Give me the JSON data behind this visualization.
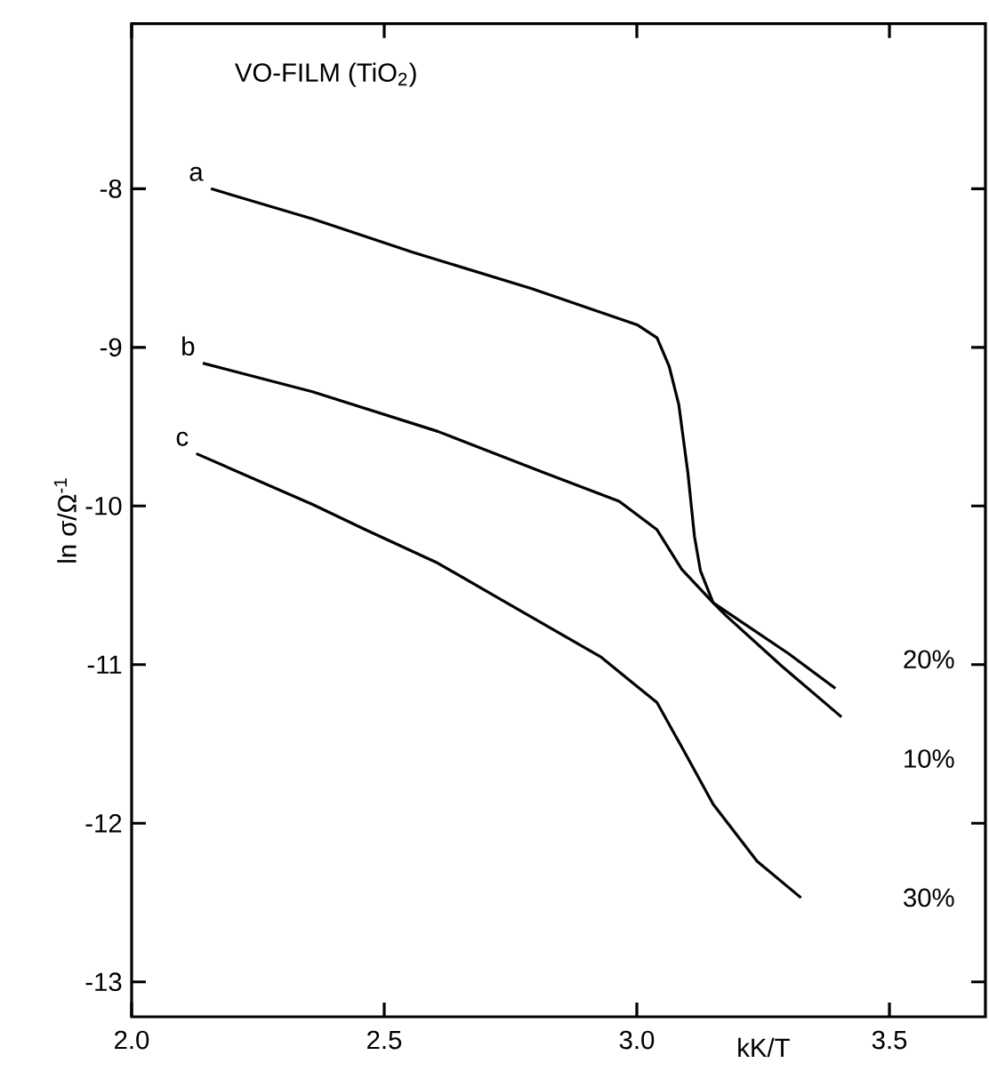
{
  "chart_data": {
    "type": "line",
    "title": "VO-FILM (TiO$_{2}$)",
    "xlabel": "kK/T",
    "ylabel": "ln σ/Ω$^{-1}$",
    "xlim": [
      2.0,
      3.69
    ],
    "ylim": [
      -13.22,
      -6.96
    ],
    "xticks": [
      {
        "value": 2.0,
        "label": "2.0"
      },
      {
        "value": 2.5,
        "label": "2.5"
      },
      {
        "value": 3.0,
        "label": "3.0"
      },
      {
        "value": 3.5,
        "label": "3.5"
      }
    ],
    "yticks": [
      -13,
      -12,
      -11,
      -10,
      -9,
      -8
    ],
    "grid": false,
    "legend": "left",
    "marker": "none",
    "line_style": "solid",
    "series": [
      {
        "name": "a",
        "color": "#000000",
        "x": [
          2.157,
          2.358,
          2.556,
          2.792,
          3.002,
          3.04,
          3.064,
          3.083,
          3.101,
          3.114,
          3.126,
          3.151,
          3.176,
          3.287,
          3.405
        ],
        "values": [
          -8.0,
          -8.19,
          -8.4,
          -8.63,
          -8.86,
          -8.94,
          -9.12,
          -9.36,
          -9.79,
          -10.19,
          -10.41,
          -10.61,
          -10.69,
          -11.01,
          -11.33
        ]
      },
      {
        "name": "b",
        "color": "#000000",
        "x": [
          2.141,
          2.358,
          2.606,
          2.816,
          2.965,
          3.04,
          3.089,
          3.151,
          3.188,
          3.3,
          3.393
        ],
        "values": [
          -9.1,
          -9.28,
          -9.53,
          -9.79,
          -9.97,
          -10.15,
          -10.4,
          -10.61,
          -10.69,
          -10.93,
          -11.15
        ]
      },
      {
        "name": "c",
        "color": "#000000",
        "x": [
          2.128,
          2.358,
          2.463,
          2.606,
          2.742,
          2.928,
          3.04,
          3.089,
          3.151,
          3.238,
          3.325
        ],
        "values": [
          -9.67,
          -9.99,
          -10.15,
          -10.36,
          -10.61,
          -10.95,
          -11.24,
          -11.52,
          -11.88,
          -12.24,
          -12.47
        ]
      }
    ],
    "annotations": [
      "20%",
      "10%",
      "30%"
    ]
  }
}
